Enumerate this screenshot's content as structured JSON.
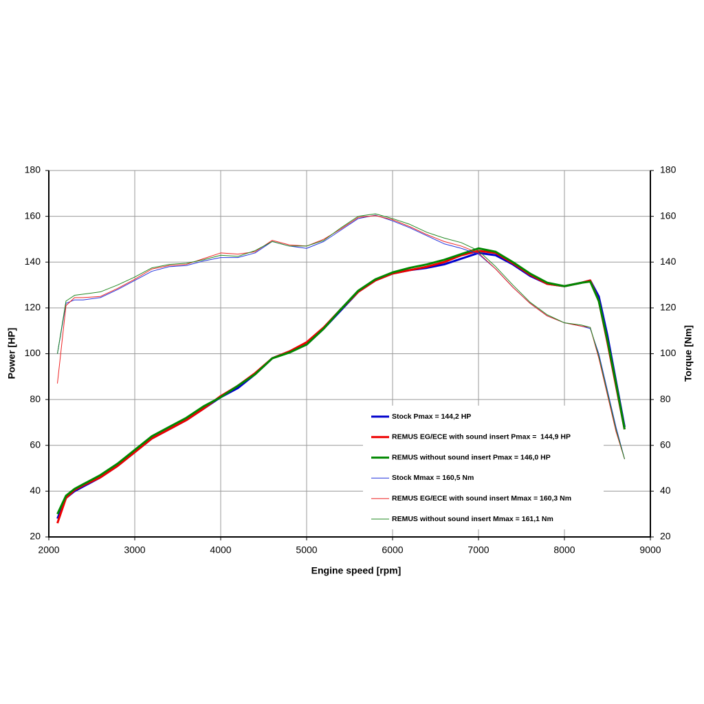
{
  "chart_data": {
    "type": "line",
    "xlabel": "Engine speed [rpm]",
    "ylabel": "Power [HP]",
    "y2label": "Torque [Nm]",
    "x": [
      2100,
      2200,
      2300,
      2400,
      2600,
      2800,
      3000,
      3200,
      3400,
      3600,
      3800,
      4000,
      4200,
      4400,
      4600,
      4800,
      5000,
      5200,
      5400,
      5600,
      5800,
      6000,
      6200,
      6400,
      6600,
      6800,
      7000,
      7200,
      7400,
      7600,
      7800,
      8000,
      8200,
      8300,
      8400,
      8500,
      8600,
      8700
    ],
    "xlim": [
      2000,
      9000
    ],
    "xticks": [
      2000,
      3000,
      4000,
      5000,
      6000,
      7000,
      8000,
      9000
    ],
    "ylim": [
      20,
      180
    ],
    "yticks": [
      20,
      40,
      60,
      80,
      100,
      120,
      140,
      160,
      180
    ],
    "y2lim": [
      20,
      180
    ],
    "y2ticks": [
      20,
      40,
      60,
      80,
      100,
      120,
      140,
      160,
      180
    ],
    "grid": true,
    "legend": "lower right",
    "series": [
      {
        "name": "Stock Pmax = 144,2 HP",
        "color": "#0000cc",
        "width": 3,
        "values": [
          28,
          37,
          40,
          42,
          46,
          51,
          57,
          63,
          67,
          71,
          76,
          81,
          85,
          91,
          98,
          101,
          104,
          111,
          119,
          127,
          132,
          135,
          136.5,
          137.5,
          139,
          141.5,
          144,
          143,
          139,
          134,
          130.5,
          129.5,
          131,
          132,
          125,
          108,
          88,
          68
        ]
      },
      {
        "name": "REMUS EG/ECE with sound insert Pmax =  144,9 HP",
        "color": "#ee0000",
        "width": 3,
        "values": [
          26,
          37,
          40.5,
          42.5,
          46,
          51,
          57,
          63,
          67,
          71,
          76,
          81.5,
          86,
          91.5,
          98,
          101,
          105,
          111.5,
          119.5,
          127,
          132,
          135,
          136.5,
          138,
          140,
          143,
          144.9,
          144,
          139.5,
          134.5,
          130.5,
          129.5,
          131,
          132,
          123,
          105,
          86,
          67
        ]
      },
      {
        "name": "REMUS without sound insert Pmax = 146,0 HP",
        "color": "#008800",
        "width": 3,
        "values": [
          30,
          38,
          41,
          43,
          47,
          52,
          58,
          64,
          68,
          72,
          77,
          81,
          86,
          91,
          98,
          100.5,
          104,
          111,
          119.5,
          127.5,
          132.5,
          135.5,
          137.5,
          139,
          141,
          143.5,
          146,
          144.5,
          140,
          135,
          131,
          129.5,
          131,
          131.5,
          123,
          106,
          87,
          67
        ]
      },
      {
        "name": "Stock Mmax = 160,5 Nm",
        "color": "#2233dd",
        "width": 1,
        "axis": "y2",
        "values": [
          100,
          122,
          123.5,
          123.5,
          124.5,
          128,
          132,
          136,
          138,
          138.5,
          140.5,
          142,
          142,
          144,
          149,
          147,
          146,
          149,
          154,
          159,
          160.5,
          158,
          155,
          151.5,
          148,
          146,
          143.5,
          137,
          129,
          122,
          116.5,
          113.5,
          112,
          111,
          100,
          84,
          68,
          54
        ]
      },
      {
        "name": "REMUS EG/ECE with sound insert Mmax = 160,3 Nm",
        "color": "#ee2222",
        "width": 1,
        "axis": "y2",
        "values": [
          87,
          121,
          124.5,
          124.5,
          125,
          128.5,
          132.5,
          137,
          138.5,
          139,
          141.5,
          144,
          143.5,
          144.5,
          149.5,
          147.5,
          147,
          150,
          154.5,
          159.5,
          160.3,
          158.5,
          155.5,
          152,
          149,
          147,
          144,
          137,
          129,
          122,
          116.5,
          113.5,
          112,
          111.5,
          98,
          82,
          66,
          54
        ]
      },
      {
        "name": "REMUS without sound insert Mmax = 161,1 Nm",
        "color": "#228822",
        "width": 1,
        "axis": "y2",
        "values": [
          100,
          123,
          125.5,
          126,
          127,
          130,
          133.5,
          137.5,
          139,
          139.5,
          141,
          143,
          142.5,
          145,
          149,
          147,
          147,
          149.5,
          155,
          160,
          161.1,
          159,
          156.5,
          153,
          150.5,
          148.5,
          145,
          138,
          130,
          122.5,
          117,
          113.5,
          112.5,
          111.5,
          99,
          83,
          67,
          54
        ]
      }
    ]
  }
}
